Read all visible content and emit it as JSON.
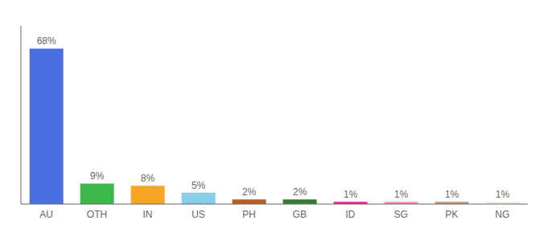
{
  "chart_data": {
    "type": "bar",
    "categories": [
      "AU",
      "OTH",
      "IN",
      "US",
      "PH",
      "GB",
      "ID",
      "SG",
      "PK",
      "NG"
    ],
    "values": [
      68,
      9,
      8,
      5,
      2,
      2,
      1,
      1,
      1,
      1
    ],
    "value_labels": [
      "68%",
      "9%",
      "8%",
      "5%",
      "2%",
      "2%",
      "1%",
      "1%",
      "1%",
      "1%"
    ],
    "colors": [
      "#4a6fe3",
      "#3cb84a",
      "#f5a623",
      "#87ceeb",
      "#b85c20",
      "#2e7d32",
      "#e91e8c",
      "#f48fb1",
      "#c8917a",
      "#f0ede0"
    ],
    "ylim": [
      0,
      78
    ],
    "data_labels": true,
    "tick_labels": "x"
  }
}
